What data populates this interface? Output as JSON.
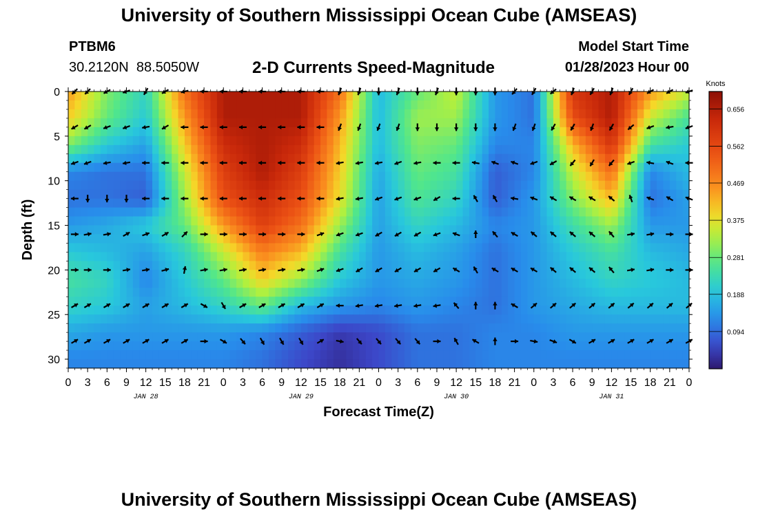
{
  "header": {
    "title": "University of Southern Mississippi Ocean Cube (AMSEAS)",
    "station_id": "PTBM6",
    "station_coords": "30.2120N  88.5050W",
    "subtitle": "2-D Currents Speed-Magnitude",
    "model_start_label": "Model Start Time",
    "model_start_value": "01/28/2023 Hour 00"
  },
  "footer": {
    "title": "University of Southern Mississippi Ocean Cube (AMSEAS)"
  },
  "chart_data": {
    "type": "heatmap",
    "xlabel": "Forecast Time(Z)",
    "ylabel": "Depth (ft)",
    "ylim": [
      0,
      31
    ],
    "y_reversed": true,
    "x_hours_range": [
      0,
      96
    ],
    "x_tick_labels": [
      "0",
      "3",
      "6",
      "9",
      "12",
      "15",
      "18",
      "21",
      "0",
      "3",
      "6",
      "9",
      "12",
      "15",
      "18",
      "21",
      "0",
      "3",
      "6",
      "9",
      "12",
      "15",
      "18",
      "21",
      "0",
      "3",
      "6",
      "9",
      "12",
      "15",
      "18",
      "21",
      "0"
    ],
    "y_tick_labels": [
      "0",
      "5",
      "10",
      "15",
      "20",
      "25",
      "30"
    ],
    "y_tick_values": [
      0,
      5,
      10,
      15,
      20,
      25,
      30
    ],
    "day_labels": [
      {
        "label": "JAN 28",
        "hour": 12
      },
      {
        "label": "JAN 29",
        "hour": 36
      },
      {
        "label": "JAN 30",
        "hour": 60
      },
      {
        "label": "JAN 31",
        "hour": 84
      }
    ],
    "colorbar": {
      "units": "Knots",
      "min": 0.0,
      "max": 0.7,
      "tick_values": [
        0.656,
        0.562,
        0.469,
        0.375,
        0.281,
        0.188,
        0.094
      ],
      "tick_labels": [
        "0.656",
        "0.562",
        "0.469",
        "0.375",
        "0.281",
        "0.188",
        "0.094"
      ]
    },
    "depths_ft": [
      0,
      3,
      6,
      9,
      12,
      15,
      18,
      21,
      24,
      27,
      30
    ],
    "hours": [
      0,
      6,
      12,
      18,
      24,
      30,
      36,
      42,
      48,
      54,
      60,
      66,
      72,
      78,
      84,
      90,
      96
    ],
    "speed_knots": [
      [
        0.45,
        0.3,
        0.22,
        0.5,
        0.66,
        0.66,
        0.66,
        0.5,
        0.18,
        0.28,
        0.35,
        0.14,
        0.1,
        0.6,
        0.66,
        0.45,
        0.35
      ],
      [
        0.4,
        0.28,
        0.2,
        0.45,
        0.66,
        0.66,
        0.66,
        0.45,
        0.18,
        0.32,
        0.32,
        0.14,
        0.1,
        0.55,
        0.66,
        0.35,
        0.25
      ],
      [
        0.3,
        0.2,
        0.15,
        0.4,
        0.62,
        0.66,
        0.62,
        0.42,
        0.18,
        0.3,
        0.28,
        0.12,
        0.12,
        0.42,
        0.6,
        0.25,
        0.2
      ],
      [
        0.12,
        0.1,
        0.1,
        0.35,
        0.58,
        0.66,
        0.58,
        0.4,
        0.16,
        0.28,
        0.25,
        0.08,
        0.12,
        0.35,
        0.5,
        0.12,
        0.18
      ],
      [
        0.1,
        0.1,
        0.08,
        0.32,
        0.55,
        0.62,
        0.55,
        0.38,
        0.15,
        0.26,
        0.22,
        0.08,
        0.14,
        0.3,
        0.42,
        0.1,
        0.15
      ],
      [
        0.14,
        0.16,
        0.2,
        0.28,
        0.45,
        0.58,
        0.5,
        0.32,
        0.15,
        0.22,
        0.18,
        0.12,
        0.14,
        0.24,
        0.32,
        0.14,
        0.14
      ],
      [
        0.2,
        0.18,
        0.15,
        0.22,
        0.35,
        0.48,
        0.42,
        0.25,
        0.14,
        0.18,
        0.15,
        0.1,
        0.14,
        0.2,
        0.25,
        0.18,
        0.16
      ],
      [
        0.25,
        0.22,
        0.12,
        0.2,
        0.28,
        0.4,
        0.32,
        0.2,
        0.14,
        0.16,
        0.14,
        0.1,
        0.14,
        0.18,
        0.22,
        0.2,
        0.18
      ],
      [
        0.22,
        0.2,
        0.15,
        0.18,
        0.22,
        0.28,
        0.18,
        0.14,
        0.12,
        0.14,
        0.12,
        0.1,
        0.14,
        0.16,
        0.18,
        0.18,
        0.18
      ],
      [
        0.16,
        0.14,
        0.14,
        0.14,
        0.14,
        0.12,
        0.08,
        0.04,
        0.06,
        0.1,
        0.1,
        0.12,
        0.12,
        0.14,
        0.14,
        0.14,
        0.14
      ],
      [
        0.12,
        0.12,
        0.12,
        0.12,
        0.12,
        0.1,
        0.06,
        0.03,
        0.06,
        0.1,
        0.1,
        0.12,
        0.12,
        0.12,
        0.12,
        0.12,
        0.12
      ]
    ],
    "vector_hours": [
      1,
      3,
      6,
      9,
      12,
      15,
      18,
      21,
      24,
      27,
      30,
      33,
      36,
      39,
      42,
      45,
      48,
      51,
      54,
      57,
      60,
      63,
      66,
      69,
      72,
      75,
      78,
      81,
      84,
      87,
      90,
      93,
      96
    ],
    "vector_depths_ft": [
      0,
      4,
      8,
      12,
      16,
      20,
      24,
      28
    ],
    "vector_directions_deg": [
      [
        225,
        225,
        240,
        250,
        210,
        240,
        255,
        270,
        270,
        270,
        270,
        270,
        270,
        270,
        200,
        200,
        180,
        200,
        180,
        200,
        180,
        180,
        180,
        220,
        210,
        230,
        200,
        210,
        200,
        210,
        240,
        240,
        250
      ],
      [
        240,
        240,
        250,
        250,
        260,
        240,
        270,
        270,
        270,
        270,
        270,
        270,
        270,
        270,
        200,
        200,
        200,
        200,
        180,
        180,
        180,
        180,
        180,
        200,
        200,
        210,
        210,
        200,
        210,
        230,
        250,
        260,
        250
      ],
      [
        250,
        250,
        260,
        260,
        270,
        270,
        270,
        270,
        270,
        270,
        270,
        270,
        270,
        270,
        260,
        260,
        260,
        250,
        260,
        270,
        270,
        280,
        290,
        290,
        250,
        240,
        220,
        210,
        220,
        250,
        280,
        290,
        270
      ],
      [
        270,
        180,
        180,
        180,
        270,
        270,
        270,
        270,
        270,
        270,
        270,
        270,
        270,
        270,
        260,
        260,
        250,
        250,
        250,
        240,
        270,
        330,
        330,
        280,
        290,
        300,
        300,
        300,
        310,
        340,
        290,
        300,
        290
      ],
      [
        90,
        80,
        80,
        60,
        70,
        60,
        45,
        90,
        90,
        90,
        90,
        90,
        90,
        70,
        250,
        250,
        240,
        240,
        240,
        250,
        290,
        360,
        320,
        300,
        310,
        310,
        310,
        310,
        320,
        80,
        80,
        90,
        90
      ],
      [
        90,
        90,
        90,
        80,
        80,
        75,
        10,
        80,
        80,
        80,
        80,
        80,
        80,
        70,
        250,
        240,
        240,
        240,
        240,
        240,
        300,
        330,
        300,
        300,
        300,
        310,
        310,
        310,
        320,
        80,
        80,
        90,
        90
      ],
      [
        60,
        60,
        60,
        60,
        60,
        60,
        60,
        120,
        150,
        60,
        60,
        60,
        60,
        60,
        270,
        260,
        260,
        260,
        260,
        260,
        320,
        360,
        360,
        300,
        50,
        50,
        50,
        50,
        50,
        50,
        50,
        50,
        50
      ],
      [
        60,
        60,
        60,
        60,
        60,
        60,
        60,
        90,
        120,
        140,
        150,
        150,
        150,
        60,
        100,
        140,
        140,
        140,
        140,
        90,
        330,
        300,
        360,
        90,
        100,
        110,
        120,
        60,
        60,
        60,
        60,
        60,
        60
      ]
    ]
  }
}
